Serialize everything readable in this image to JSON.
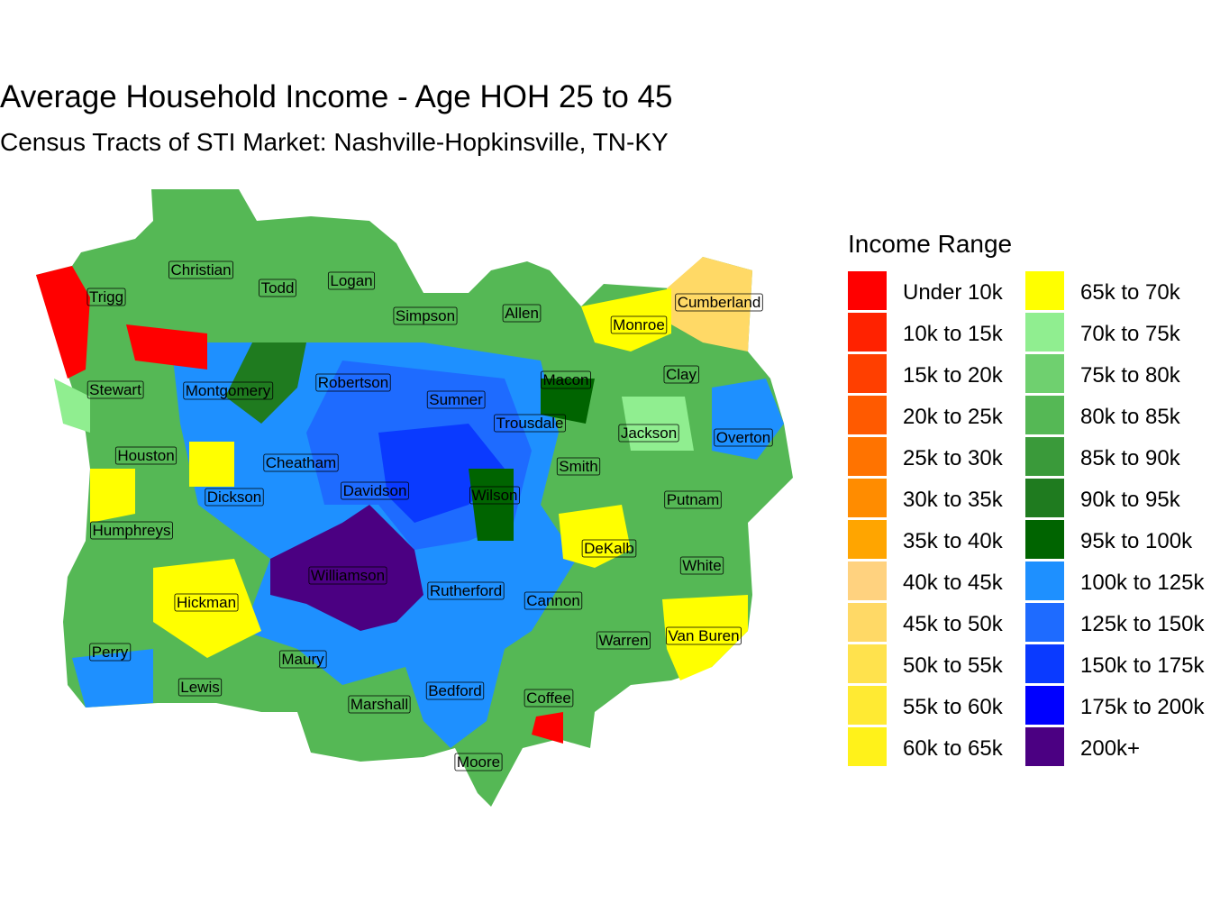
{
  "title": "Average Household Income - Age HOH 25 to 45",
  "subtitle": "Census Tracts of STI Market: Nashville-Hopkinsville, TN-KY",
  "legend_title": "Income Range",
  "legend": [
    {
      "label": "Under 10k",
      "color": "#ff0000"
    },
    {
      "label": "10k to 15k",
      "color": "#ff2200"
    },
    {
      "label": "15k to 20k",
      "color": "#ff3f00"
    },
    {
      "label": "20k to 25k",
      "color": "#ff5a00"
    },
    {
      "label": "25k to 30k",
      "color": "#ff7300"
    },
    {
      "label": "30k to 35k",
      "color": "#ff8c00"
    },
    {
      "label": "35k to 40k",
      "color": "#ffa500"
    },
    {
      "label": "40k to 45k",
      "color": "#ffd27f"
    },
    {
      "label": "45k to 50k",
      "color": "#ffd966"
    },
    {
      "label": "50k to 55k",
      "color": "#ffe24d"
    },
    {
      "label": "55k to 60k",
      "color": "#ffea33"
    },
    {
      "label": "60k to 65k",
      "color": "#fff21a"
    },
    {
      "label": "65k to 70k",
      "color": "#ffff00"
    },
    {
      "label": "70k to 75k",
      "color": "#90ee90"
    },
    {
      "label": "75k to 80k",
      "color": "#6fd06f"
    },
    {
      "label": "80k to 85k",
      "color": "#55b855"
    },
    {
      "label": "85k to 90k",
      "color": "#3a9a3a"
    },
    {
      "label": "90k to 95k",
      "color": "#1f7b1f"
    },
    {
      "label": "95k to 100k",
      "color": "#006400"
    },
    {
      "label": "100k to 125k",
      "color": "#1e90ff"
    },
    {
      "label": "125k to 150k",
      "color": "#1e6bff"
    },
    {
      "label": "150k to 175k",
      "color": "#0a3aff"
    },
    {
      "label": "175k to 200k",
      "color": "#0000ff"
    },
    {
      "label": "200k+",
      "color": "#4b0082"
    }
  ],
  "counties": [
    "Christian",
    "Trigg",
    "Todd",
    "Logan",
    "Simpson",
    "Allen",
    "Monroe",
    "Cumberland",
    "Stewart",
    "Montgomery",
    "Robertson",
    "Sumner",
    "Macon",
    "Clay",
    "Trousdale",
    "Jackson",
    "Overton",
    "Houston",
    "Cheatham",
    "Smith",
    "Dickson",
    "Davidson",
    "Wilson",
    "Putnam",
    "Humphreys",
    "DeKalb",
    "White",
    "Williamson",
    "Rutherford",
    "Cannon",
    "Hickman",
    "Warren",
    "Van Buren",
    "Perry",
    "Maury",
    "Lewis",
    "Bedford",
    "Coffee",
    "Marshall",
    "Moore"
  ]
}
